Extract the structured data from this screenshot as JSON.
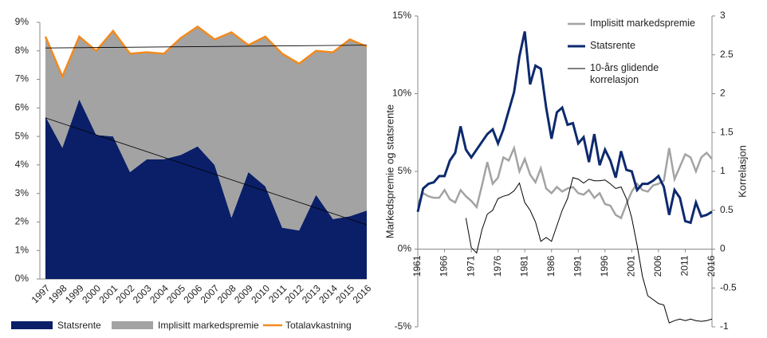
{
  "chart_data": [
    {
      "type": "area",
      "categories": [
        "1997",
        "1998",
        "1999",
        "2000",
        "2001",
        "2002",
        "2003",
        "2004",
        "2005",
        "2006",
        "2007",
        "2008",
        "2009",
        "2010",
        "2011",
        "2012",
        "2013",
        "2014",
        "2015",
        "2016"
      ],
      "series": [
        {
          "name": "Statsrente",
          "color": "#0b1f68",
          "mark": "area",
          "values": [
            5.7,
            4.6,
            6.3,
            5.05,
            5.0,
            3.75,
            4.2,
            4.2,
            4.35,
            4.65,
            4.0,
            2.15,
            3.75,
            3.25,
            1.8,
            1.7,
            2.95,
            2.1,
            2.2,
            2.4
          ]
        },
        {
          "name": "Implisitt markedspremie",
          "color": "#a3a3a3",
          "mark": "area",
          "values": [
            2.8,
            2.5,
            2.2,
            2.95,
            3.7,
            4.15,
            3.75,
            3.7,
            4.1,
            4.2,
            4.4,
            6.5,
            4.45,
            5.25,
            6.1,
            5.85,
            5.05,
            5.85,
            6.2,
            5.75
          ]
        },
        {
          "name": "Totalavkastning",
          "color": "#f28a1e",
          "mark": "line",
          "values": [
            8.5,
            7.1,
            8.5,
            8.0,
            8.7,
            7.9,
            7.95,
            7.9,
            8.45,
            8.85,
            8.4,
            8.65,
            8.2,
            8.5,
            7.9,
            7.55,
            8.0,
            7.95,
            8.4,
            8.15
          ]
        }
      ],
      "trend_lines": [
        {
          "color": "#000000",
          "values": [
            8.1,
            8.2
          ]
        },
        {
          "color": "#000000",
          "values": [
            5.65,
            1.9
          ]
        }
      ],
      "ylim": [
        0,
        9
      ],
      "yticks": [
        {
          "value": 0,
          "label": "0%"
        },
        {
          "value": 1,
          "label": "1%"
        },
        {
          "value": 2,
          "label": "2%"
        },
        {
          "value": 3,
          "label": "3%"
        },
        {
          "value": 4,
          "label": "4%"
        },
        {
          "value": 5,
          "label": "5%"
        },
        {
          "value": 6,
          "label": "6%"
        },
        {
          "value": 7,
          "label": "7%"
        },
        {
          "value": 8,
          "label": "8%"
        },
        {
          "value": 9,
          "label": "9%"
        }
      ],
      "legend": "bottom"
    },
    {
      "type": "line",
      "y_label": "Markedspremie og statsrente",
      "y2_label": "Korrelasjon",
      "x": [
        1961,
        1962,
        1963,
        1964,
        1965,
        1966,
        1967,
        1968,
        1969,
        1970,
        1971,
        1972,
        1973,
        1974,
        1975,
        1976,
        1977,
        1978,
        1979,
        1980,
        1981,
        1982,
        1983,
        1984,
        1985,
        1986,
        1987,
        1988,
        1989,
        1990,
        1991,
        1992,
        1993,
        1994,
        1995,
        1996,
        1997,
        1998,
        1999,
        2000,
        2001,
        2002,
        2003,
        2004,
        2005,
        2006,
        2007,
        2008,
        2009,
        2010,
        2011,
        2012,
        2013,
        2014,
        2015,
        2016
      ],
      "xlim": [
        1961,
        2016
      ],
      "xticks": [
        1961,
        1966,
        1971,
        1976,
        1981,
        1986,
        1991,
        1996,
        2001,
        2006,
        2011,
        2016
      ],
      "series": [
        {
          "name": "Implisitt markedspremie",
          "color": "#a3a3a3",
          "width": 2.5,
          "values": [
            2.9,
            3.6,
            3.4,
            3.3,
            3.3,
            3.8,
            3.2,
            3.0,
            3.8,
            3.4,
            3.1,
            2.7,
            4.1,
            5.6,
            4.2,
            4.6,
            5.9,
            5.7,
            6.5,
            5.0,
            5.8,
            4.8,
            4.3,
            5.2,
            3.9,
            3.6,
            4.0,
            3.7,
            3.9,
            4.0,
            3.6,
            3.5,
            3.8,
            3.3,
            3.6,
            2.9,
            2.8,
            2.2,
            2.0,
            2.9,
            3.7,
            4.2,
            3.8,
            3.7,
            4.1,
            4.2,
            4.4,
            6.5,
            4.5,
            5.3,
            6.1,
            5.9,
            5.0,
            5.9,
            6.2,
            5.8
          ]
        },
        {
          "name": "Statsrente",
          "color": "#0d2a6e",
          "width": 3,
          "values": [
            2.4,
            3.9,
            4.2,
            4.3,
            4.7,
            4.7,
            5.7,
            6.2,
            7.9,
            6.4,
            5.9,
            6.4,
            6.9,
            7.4,
            7.7,
            6.8,
            7.7,
            8.9,
            10.1,
            12.4,
            14.0,
            10.6,
            11.8,
            11.6,
            9.1,
            7.1,
            8.8,
            9.1,
            8.0,
            8.1,
            6.8,
            7.2,
            5.6,
            7.4,
            5.4,
            6.4,
            5.7,
            4.6,
            6.3,
            5.1,
            5.0,
            3.8,
            4.2,
            4.2,
            4.4,
            4.7,
            4.0,
            2.2,
            3.8,
            3.3,
            1.8,
            1.7,
            3.0,
            2.1,
            2.2,
            2.4
          ]
        },
        {
          "name": "10-års glidende korrelasjon",
          "color": "#000000",
          "width": 1,
          "axis": "y2",
          "values": [
            null,
            null,
            null,
            null,
            null,
            null,
            null,
            null,
            null,
            0.4,
            0.02,
            -0.05,
            0.25,
            0.45,
            0.5,
            0.65,
            0.68,
            0.7,
            0.75,
            0.85,
            0.6,
            0.5,
            0.35,
            0.1,
            0.15,
            0.1,
            0.3,
            0.5,
            0.65,
            0.92,
            0.9,
            0.85,
            0.9,
            0.88,
            0.88,
            0.89,
            0.84,
            0.78,
            0.8,
            0.65,
            0.4,
            0.05,
            -0.35,
            -0.6,
            -0.65,
            -0.7,
            -0.72,
            -0.95,
            -0.92,
            -0.9,
            -0.92,
            -0.9,
            -0.92,
            -0.93,
            -0.92,
            -0.9
          ]
        }
      ],
      "ylim": [
        -5,
        15
      ],
      "yticks": [
        {
          "value": -5,
          "label": "-5%"
        },
        {
          "value": 0,
          "label": "0%"
        },
        {
          "value": 5,
          "label": "5%"
        },
        {
          "value": 10,
          "label": "10%"
        },
        {
          "value": 15,
          "label": "15%"
        }
      ],
      "y2lim": [
        -1,
        3
      ],
      "y2ticks": [
        -1,
        -0.5,
        0,
        0.5,
        1,
        1.5,
        2,
        2.5,
        3
      ],
      "legend": "upper right"
    }
  ]
}
